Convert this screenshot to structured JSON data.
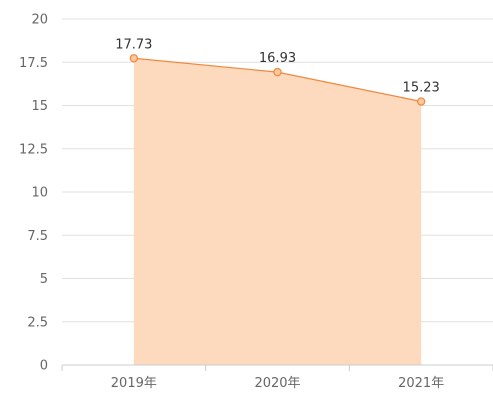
{
  "chart_data": {
    "type": "area",
    "categories": [
      "2019年",
      "2020年",
      "2021年"
    ],
    "series": [
      {
        "values": [
          17.73,
          16.93,
          15.23
        ]
      }
    ],
    "data_labels": [
      "17.73",
      "16.93",
      "15.23"
    ],
    "title": "",
    "xlabel": "",
    "ylabel": "",
    "ylim": [
      0,
      20
    ],
    "yticks": [
      0,
      2.5,
      5,
      7.5,
      10,
      12.5,
      15,
      17.5,
      20
    ],
    "ytick_labels": [
      "0",
      "2.5",
      "5",
      "7.5",
      "10",
      "12.5",
      "15",
      "17.5",
      "20"
    ],
    "grid": true,
    "legend": "none",
    "colors": {
      "line": "#f0883e",
      "area": "#fdd9bd",
      "marker_fill": "#fbc99b",
      "grid": "#e0e0e0",
      "axis": "#cccccc"
    }
  }
}
